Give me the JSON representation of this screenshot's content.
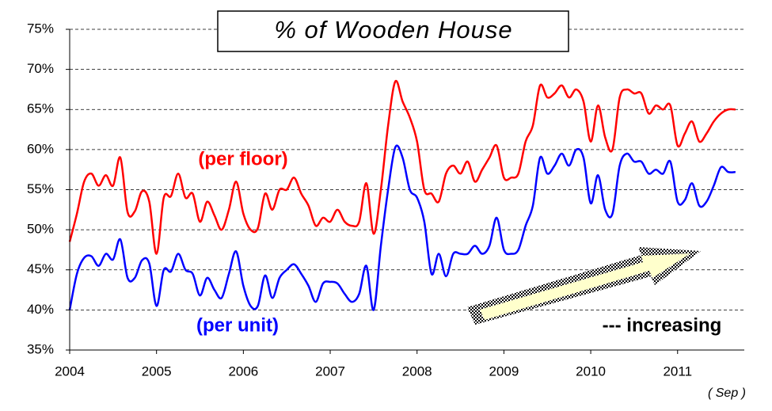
{
  "chart_data": {
    "type": "line",
    "title": "% of Wooden House",
    "annotations": [
      "(per floor)",
      "(per unit)",
      "--- increasing",
      "( Sep )"
    ],
    "categories": [
      "2004",
      null,
      null,
      null,
      null,
      null,
      null,
      null,
      null,
      null,
      null,
      null,
      "2005",
      null,
      null,
      null,
      null,
      null,
      null,
      null,
      null,
      null,
      null,
      null,
      "2006",
      null,
      null,
      null,
      null,
      null,
      null,
      null,
      null,
      null,
      null,
      null,
      "2007",
      null,
      null,
      null,
      null,
      null,
      null,
      null,
      null,
      null,
      null,
      null,
      "2008",
      null,
      null,
      null,
      null,
      null,
      null,
      null,
      null,
      null,
      null,
      null,
      "2009",
      null,
      null,
      null,
      null,
      null,
      null,
      null,
      null,
      null,
      null,
      null,
      "2010",
      null,
      null,
      null,
      null,
      null,
      null,
      null,
      null,
      null,
      null,
      null,
      "2011",
      null,
      null,
      null,
      null,
      null,
      null,
      null,
      null
    ],
    "series": [
      {
        "name": "(per floor)",
        "color": "#ff0000",
        "values": [
          48.5,
          52,
          56,
          57,
          55.5,
          56.8,
          55.5,
          59,
          52.2,
          52.3,
          54.8,
          53.5,
          47,
          54,
          54.2,
          57,
          54,
          54.5,
          51,
          53.5,
          51.8,
          50,
          52.5,
          56,
          52,
          50,
          50.2,
          54.5,
          52.5,
          55,
          55,
          56.5,
          54.5,
          53,
          50.5,
          51.5,
          51,
          52.5,
          51,
          50.5,
          51,
          55.8,
          49.5,
          55,
          63,
          68.5,
          66,
          64,
          61,
          55,
          54.5,
          53.5,
          57,
          58,
          57,
          58.5,
          56,
          57.5,
          59,
          60.5,
          56.5,
          56.5,
          57,
          61,
          63,
          68,
          66.5,
          67,
          68,
          66.5,
          67.5,
          66,
          61,
          65.5,
          61.5,
          60,
          66.5,
          67.5,
          67,
          67,
          64.5,
          65.5,
          65,
          65.5,
          60.5,
          62,
          63.5,
          61,
          62,
          63.5,
          64.5,
          65,
          65
        ]
      },
      {
        "name": "(per unit)",
        "color": "#0000ff",
        "values": [
          40,
          44.5,
          46.5,
          46.7,
          45.5,
          47,
          46.3,
          48.8,
          44,
          44,
          46.2,
          45.8,
          40.5,
          45,
          44.8,
          47,
          45,
          44.5,
          41.8,
          44,
          42.5,
          41.5,
          44.5,
          47.3,
          43,
          40.5,
          40.5,
          44.3,
          41.5,
          44,
          45,
          45.7,
          44.5,
          43,
          41,
          43.3,
          43.5,
          43.3,
          42,
          41,
          42,
          45.5,
          40,
          48,
          55,
          60.3,
          59,
          55,
          54,
          51,
          44.5,
          47,
          44.2,
          47,
          47,
          47,
          48,
          47,
          48,
          51.5,
          47.5,
          47,
          47.5,
          50.5,
          53,
          59,
          57,
          58,
          59.5,
          58,
          60,
          59,
          53.3,
          56.8,
          52.5,
          52,
          58,
          59.5,
          58.5,
          58.5,
          57,
          57.5,
          57,
          58.5,
          53.5,
          53.7,
          55.8,
          53,
          53.5,
          55.5,
          57.8,
          57.2,
          57.2
        ]
      }
    ],
    "ylim": [
      35,
      75
    ],
    "yticks": [
      {
        "value": 35,
        "label": "35%"
      },
      {
        "value": 40,
        "label": "40%"
      },
      {
        "value": 45,
        "label": "45%"
      },
      {
        "value": 50,
        "label": "50%"
      },
      {
        "value": 55,
        "label": "55%"
      },
      {
        "value": 60,
        "label": "60%"
      },
      {
        "value": 65,
        "label": "65%"
      },
      {
        "value": 70,
        "label": "70%"
      },
      {
        "value": 75,
        "label": "75%"
      }
    ],
    "grid": true
  }
}
